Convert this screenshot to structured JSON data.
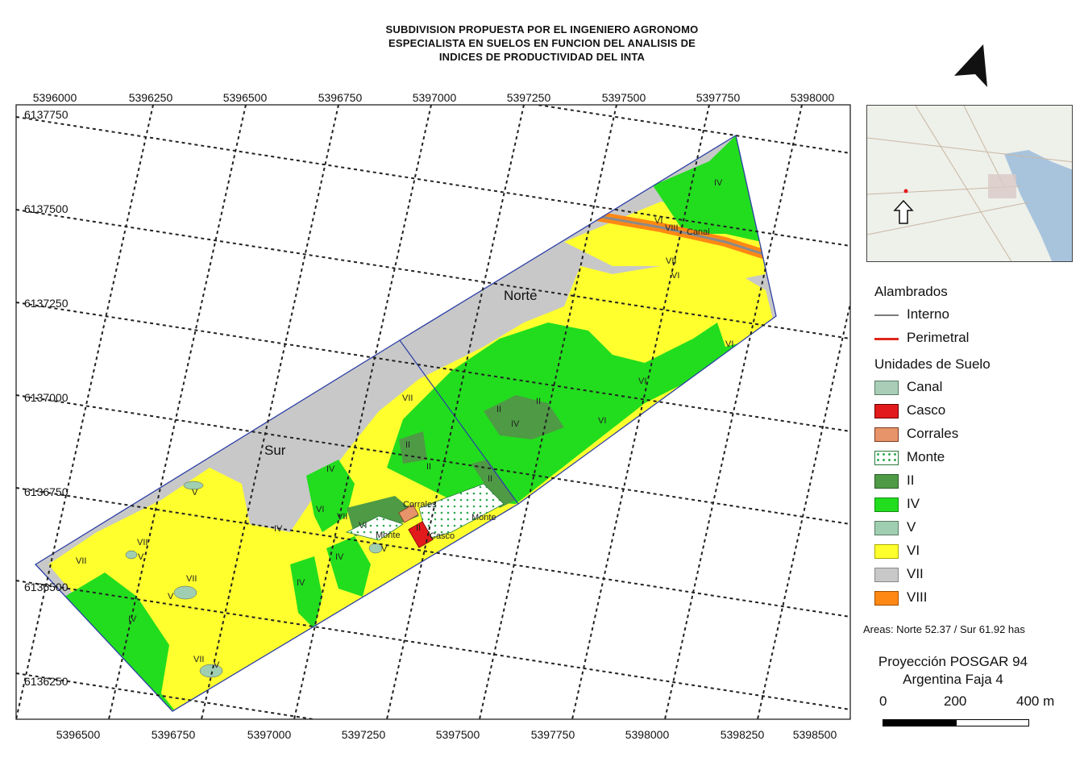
{
  "title_lines": [
    "SUBDIVISION PROPUESTA POR EL INGENIERO AGRONOMO",
    "ESPECIALISTA EN SUELOS EN FUNCION DEL ANALISIS DE",
    "INDICES DE PRODUCTIVIDAD DEL INTA"
  ],
  "axes": {
    "top_x": [
      "5396000",
      "5396250",
      "5396500",
      "5396750",
      "5397000",
      "5397250",
      "5397500",
      "5397750",
      "5398000"
    ],
    "bottom_x": [
      "5396500",
      "5396750",
      "5397000",
      "5397250",
      "5397500",
      "5397750",
      "5398000",
      "5398250",
      "5398500"
    ],
    "left_y": [
      "6137750",
      "6137500",
      "6137250",
      "6137000",
      "6136750",
      "6136500",
      "6136250"
    ]
  },
  "map_labels": {
    "norte": "Norte",
    "sur": "Sur",
    "canal": "Canal",
    "corrales": "Corrales",
    "casco": "Casco",
    "monte_1": "Monte",
    "monte_2": "Monte",
    "units": [
      "IV",
      "VI",
      "VIII",
      "VII",
      "VI",
      "VI",
      "VI",
      "VI",
      "II",
      "II",
      "IV",
      "VI",
      "VII",
      "II",
      "II",
      "II",
      "IV",
      "VI",
      "IV",
      "IV",
      "II",
      "V",
      "V",
      "VII",
      "VII",
      "V",
      "VII",
      "V",
      "IV",
      "VII",
      "V",
      "VII",
      "IV"
    ]
  },
  "legend": {
    "fences_heading": "Alambrados",
    "fences": [
      {
        "label": "Interno",
        "color": "#7a7a7a"
      },
      {
        "label": "Perimetral",
        "color": "#e0261d"
      }
    ],
    "soils_heading": "Unidades de Suelo",
    "soils": [
      {
        "label": "Canal",
        "color": "#a9cdb6",
        "pattern": "solid"
      },
      {
        "label": "Casco",
        "color": "#e31a1c",
        "pattern": "solid"
      },
      {
        "label": "Corrales",
        "color": "#e8946a",
        "pattern": "solid"
      },
      {
        "label": "Monte",
        "color": "#2fa84f",
        "pattern": "dots"
      },
      {
        "label": "II",
        "color": "#4e9a45",
        "pattern": "solid"
      },
      {
        "label": "IV",
        "color": "#22dd1e",
        "pattern": "solid"
      },
      {
        "label": "V",
        "color": "#9fcfb0",
        "pattern": "solid"
      },
      {
        "label": "VI",
        "color": "#ffff2e",
        "pattern": "solid"
      },
      {
        "label": "VII",
        "color": "#c8c8c8",
        "pattern": "solid"
      },
      {
        "label": "VIII",
        "color": "#ff8814",
        "pattern": "solid"
      }
    ]
  },
  "areas_text": "Areas: Norte 52.37 / Sur 61.92 has",
  "projection": [
    "Proyección POSGAR 94",
    "Argentina Faja 4"
  ],
  "scale_labels": [
    "0",
    "200",
    "400 m"
  ]
}
